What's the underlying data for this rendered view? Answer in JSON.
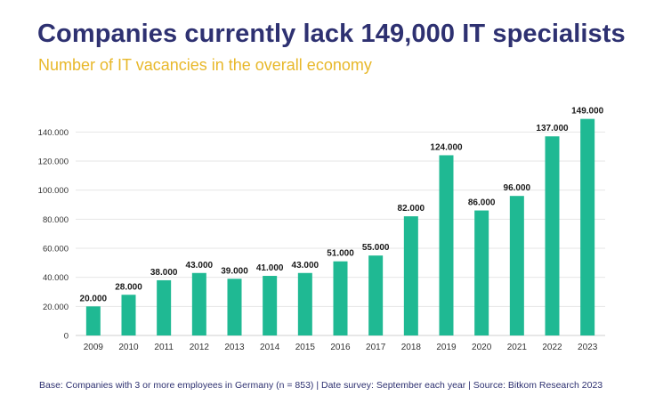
{
  "header": {
    "title": "Companies currently lack 149,000 IT specialists",
    "subtitle": "Number of IT vacancies in the overall economy"
  },
  "footer": {
    "note": "Base: Companies with 3 or more employees in Germany (n = 853) | Date survey: September each year | Source: Bitkom Research 2023"
  },
  "colors": {
    "bar": "#1fb993",
    "title": "#2e3171",
    "subtitle": "#e8b82a",
    "grid": "#e6e6e6"
  },
  "chart_data": {
    "type": "bar",
    "title": "Companies currently lack 149,000 IT specialists",
    "subtitle": "Number of IT vacancies in the overall economy",
    "xlabel": "",
    "ylabel": "",
    "categories": [
      "2009",
      "2010",
      "2011",
      "2012",
      "2013",
      "2014",
      "2015",
      "2016",
      "2017",
      "2018",
      "2019",
      "2020",
      "2021",
      "2022",
      "2023"
    ],
    "values": [
      20000,
      28000,
      38000,
      43000,
      39000,
      41000,
      43000,
      51000,
      55000,
      82000,
      124000,
      86000,
      96000,
      137000,
      149000
    ],
    "value_labels": [
      "20.000",
      "28.000",
      "38.000",
      "43.000",
      "39.000",
      "41.000",
      "43.000",
      "51.000",
      "55.000",
      "82.000",
      "124.000",
      "86.000",
      "96.000",
      "137.000",
      "149.000"
    ],
    "ylim": [
      0,
      150000
    ],
    "yticks": [
      0,
      20000,
      40000,
      60000,
      80000,
      100000,
      120000,
      140000
    ],
    "ytick_labels": [
      "0",
      "20.000",
      "40.000",
      "60.000",
      "80.000",
      "100.000",
      "120.000",
      "140.000"
    ],
    "grid": true,
    "legend": "none"
  }
}
